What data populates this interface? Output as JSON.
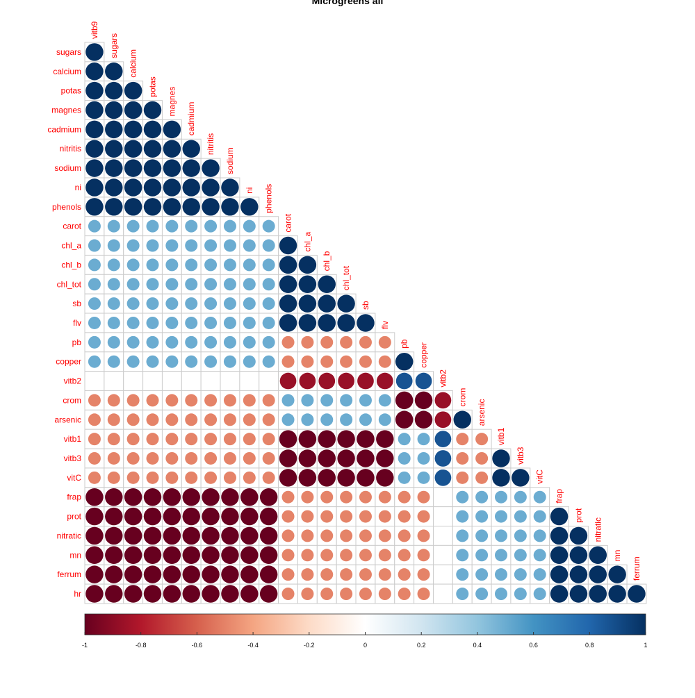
{
  "chart_data": {
    "type": "heatmap",
    "title": "Microgreens all",
    "variables": [
      "vitb9",
      "sugars",
      "calcium",
      "potas",
      "magnes",
      "cadmium",
      "nitritis",
      "sodium",
      "ni",
      "phenols",
      "carot",
      "chl_a",
      "chl_b",
      "chl_tot",
      "sb",
      "flv",
      "pb",
      "copper",
      "vitb2",
      "crom",
      "arsenic",
      "vitb1",
      "vitb3",
      "vitC",
      "frap",
      "prot",
      "nitratic",
      "mn",
      "ferrum",
      "hr"
    ],
    "row_labels": [
      "sugars",
      "calcium",
      "potas",
      "magnes",
      "cadmium",
      "nitritis",
      "sodium",
      "ni",
      "phenols",
      "carot",
      "chl_a",
      "chl_b",
      "chl_tot",
      "sb",
      "flv",
      "pb",
      "copper",
      "vitb2",
      "crom",
      "arsenic",
      "vitb1",
      "vitb3",
      "vitC",
      "frap",
      "prot",
      "nitratic",
      "mn",
      "ferrum",
      "hr"
    ],
    "col_labels": [
      "vitb9",
      "sugars",
      "calcium",
      "potas",
      "magnes",
      "cadmium",
      "nitritis",
      "sodium",
      "ni",
      "phenols",
      "carot",
      "chl_a",
      "chl_b",
      "chl_tot",
      "sb",
      "flv",
      "pb",
      "copper",
      "vitb2",
      "crom",
      "arsenic",
      "vitb1",
      "vitb3",
      "vitC",
      "frap",
      "prot",
      "nitratic",
      "mn",
      "ferrum"
    ],
    "matrix": [
      [
        1
      ],
      [
        1,
        1
      ],
      [
        1,
        1,
        1
      ],
      [
        1,
        1,
        1,
        1
      ],
      [
        1,
        1,
        1,
        1,
        1
      ],
      [
        1,
        1,
        1,
        1,
        1,
        1
      ],
      [
        1,
        1,
        1,
        1,
        1,
        1,
        1
      ],
      [
        1,
        1,
        1,
        1,
        1,
        1,
        1,
        1
      ],
      [
        1,
        1,
        1,
        1,
        1,
        1,
        1,
        1,
        1
      ],
      [
        0.5,
        0.5,
        0.5,
        0.5,
        0.5,
        0.5,
        0.5,
        0.5,
        0.5,
        0.5
      ],
      [
        0.5,
        0.5,
        0.5,
        0.5,
        0.5,
        0.5,
        0.5,
        0.5,
        0.5,
        0.5,
        1
      ],
      [
        0.5,
        0.5,
        0.5,
        0.5,
        0.5,
        0.5,
        0.5,
        0.5,
        0.5,
        0.5,
        1,
        1
      ],
      [
        0.5,
        0.5,
        0.5,
        0.5,
        0.5,
        0.5,
        0.5,
        0.5,
        0.5,
        0.5,
        1,
        1,
        1
      ],
      [
        0.5,
        0.5,
        0.5,
        0.5,
        0.5,
        0.5,
        0.5,
        0.5,
        0.5,
        0.5,
        1,
        1,
        1,
        1
      ],
      [
        0.5,
        0.5,
        0.5,
        0.5,
        0.5,
        0.5,
        0.5,
        0.5,
        0.5,
        0.5,
        1,
        1,
        1,
        1,
        1
      ],
      [
        0.5,
        0.5,
        0.5,
        0.5,
        0.5,
        0.5,
        0.5,
        0.5,
        0.5,
        0.5,
        -0.5,
        -0.5,
        -0.5,
        -0.5,
        -0.5,
        -0.5
      ],
      [
        0.5,
        0.5,
        0.5,
        0.5,
        0.5,
        0.5,
        0.5,
        0.5,
        0.5,
        0.5,
        -0.5,
        -0.5,
        -0.5,
        -0.5,
        -0.5,
        -0.5,
        1
      ],
      [
        0,
        0,
        0,
        0,
        0,
        0,
        0,
        0,
        0,
        0,
        -0.87,
        -0.87,
        -0.87,
        -0.87,
        -0.87,
        -0.87,
        0.87,
        0.87
      ],
      [
        -0.5,
        -0.5,
        -0.5,
        -0.5,
        -0.5,
        -0.5,
        -0.5,
        -0.5,
        -0.5,
        -0.5,
        0.5,
        0.5,
        0.5,
        0.5,
        0.5,
        0.5,
        -1,
        -1,
        -0.87
      ],
      [
        -0.5,
        -0.5,
        -0.5,
        -0.5,
        -0.5,
        -0.5,
        -0.5,
        -0.5,
        -0.5,
        -0.5,
        0.5,
        0.5,
        0.5,
        0.5,
        0.5,
        0.5,
        -1,
        -1,
        -0.87,
        1
      ],
      [
        -0.5,
        -0.5,
        -0.5,
        -0.5,
        -0.5,
        -0.5,
        -0.5,
        -0.5,
        -0.5,
        -0.5,
        -1,
        -1,
        -1,
        -1,
        -1,
        -1,
        0.5,
        0.5,
        0.87,
        -0.5,
        -0.5
      ],
      [
        -0.5,
        -0.5,
        -0.5,
        -0.5,
        -0.5,
        -0.5,
        -0.5,
        -0.5,
        -0.5,
        -0.5,
        -1,
        -1,
        -1,
        -1,
        -1,
        -1,
        0.5,
        0.5,
        0.87,
        -0.5,
        -0.5,
        1
      ],
      [
        -0.5,
        -0.5,
        -0.5,
        -0.5,
        -0.5,
        -0.5,
        -0.5,
        -0.5,
        -0.5,
        -0.5,
        -1,
        -1,
        -1,
        -1,
        -1,
        -1,
        0.5,
        0.5,
        0.87,
        -0.5,
        -0.5,
        1,
        1
      ],
      [
        -1,
        -1,
        -1,
        -1,
        -1,
        -1,
        -1,
        -1,
        -1,
        -1,
        -0.5,
        -0.5,
        -0.5,
        -0.5,
        -0.5,
        -0.5,
        -0.5,
        -0.5,
        0,
        0.5,
        0.5,
        0.5,
        0.5,
        0.5
      ],
      [
        -1,
        -1,
        -1,
        -1,
        -1,
        -1,
        -1,
        -1,
        -1,
        -1,
        -0.5,
        -0.5,
        -0.5,
        -0.5,
        -0.5,
        -0.5,
        -0.5,
        -0.5,
        0,
        0.5,
        0.5,
        0.5,
        0.5,
        0.5,
        1
      ],
      [
        -1,
        -1,
        -1,
        -1,
        -1,
        -1,
        -1,
        -1,
        -1,
        -1,
        -0.5,
        -0.5,
        -0.5,
        -0.5,
        -0.5,
        -0.5,
        -0.5,
        -0.5,
        0,
        0.5,
        0.5,
        0.5,
        0.5,
        0.5,
        1,
        1
      ],
      [
        -1,
        -1,
        -1,
        -1,
        -1,
        -1,
        -1,
        -1,
        -1,
        -1,
        -0.5,
        -0.5,
        -0.5,
        -0.5,
        -0.5,
        -0.5,
        -0.5,
        -0.5,
        0,
        0.5,
        0.5,
        0.5,
        0.5,
        0.5,
        1,
        1,
        1
      ],
      [
        -1,
        -1,
        -1,
        -1,
        -1,
        -1,
        -1,
        -1,
        -1,
        -1,
        -0.5,
        -0.5,
        -0.5,
        -0.5,
        -0.5,
        -0.5,
        -0.5,
        -0.5,
        0,
        0.5,
        0.5,
        0.5,
        0.5,
        0.5,
        1,
        1,
        1,
        1
      ],
      [
        -1,
        -1,
        -1,
        -1,
        -1,
        -1,
        -1,
        -1,
        -1,
        -1,
        -0.5,
        -0.5,
        -0.5,
        -0.5,
        -0.5,
        -0.5,
        -0.5,
        -0.5,
        0,
        0.5,
        0.5,
        0.5,
        0.5,
        0.5,
        1,
        1,
        1,
        1,
        1
      ]
    ],
    "colorbar": {
      "range": [
        -1,
        1
      ],
      "ticks": [
        -1,
        -0.8,
        -0.6,
        -0.4,
        -0.2,
        0,
        0.2,
        0.4,
        0.6,
        0.8,
        1
      ],
      "tick_labels": [
        "-1",
        "-0.8",
        "-0.6",
        "-0.4",
        "-0.2",
        "0",
        "0.2",
        "0.4",
        "0.6",
        "0.8",
        "1"
      ],
      "placement": "bottom"
    },
    "colors": {
      "scale": [
        "#67001F",
        "#B2182B",
        "#D6604D",
        "#F4A582",
        "#FDDBC7",
        "#FFFFFF",
        "#D1E5F0",
        "#92C5DE",
        "#4393C3",
        "#2166AC",
        "#053061"
      ],
      "label": "#FF0000",
      "grid": "#CCCCCC"
    },
    "shape": "circle",
    "layout": "lower-triangle",
    "grid": true
  }
}
